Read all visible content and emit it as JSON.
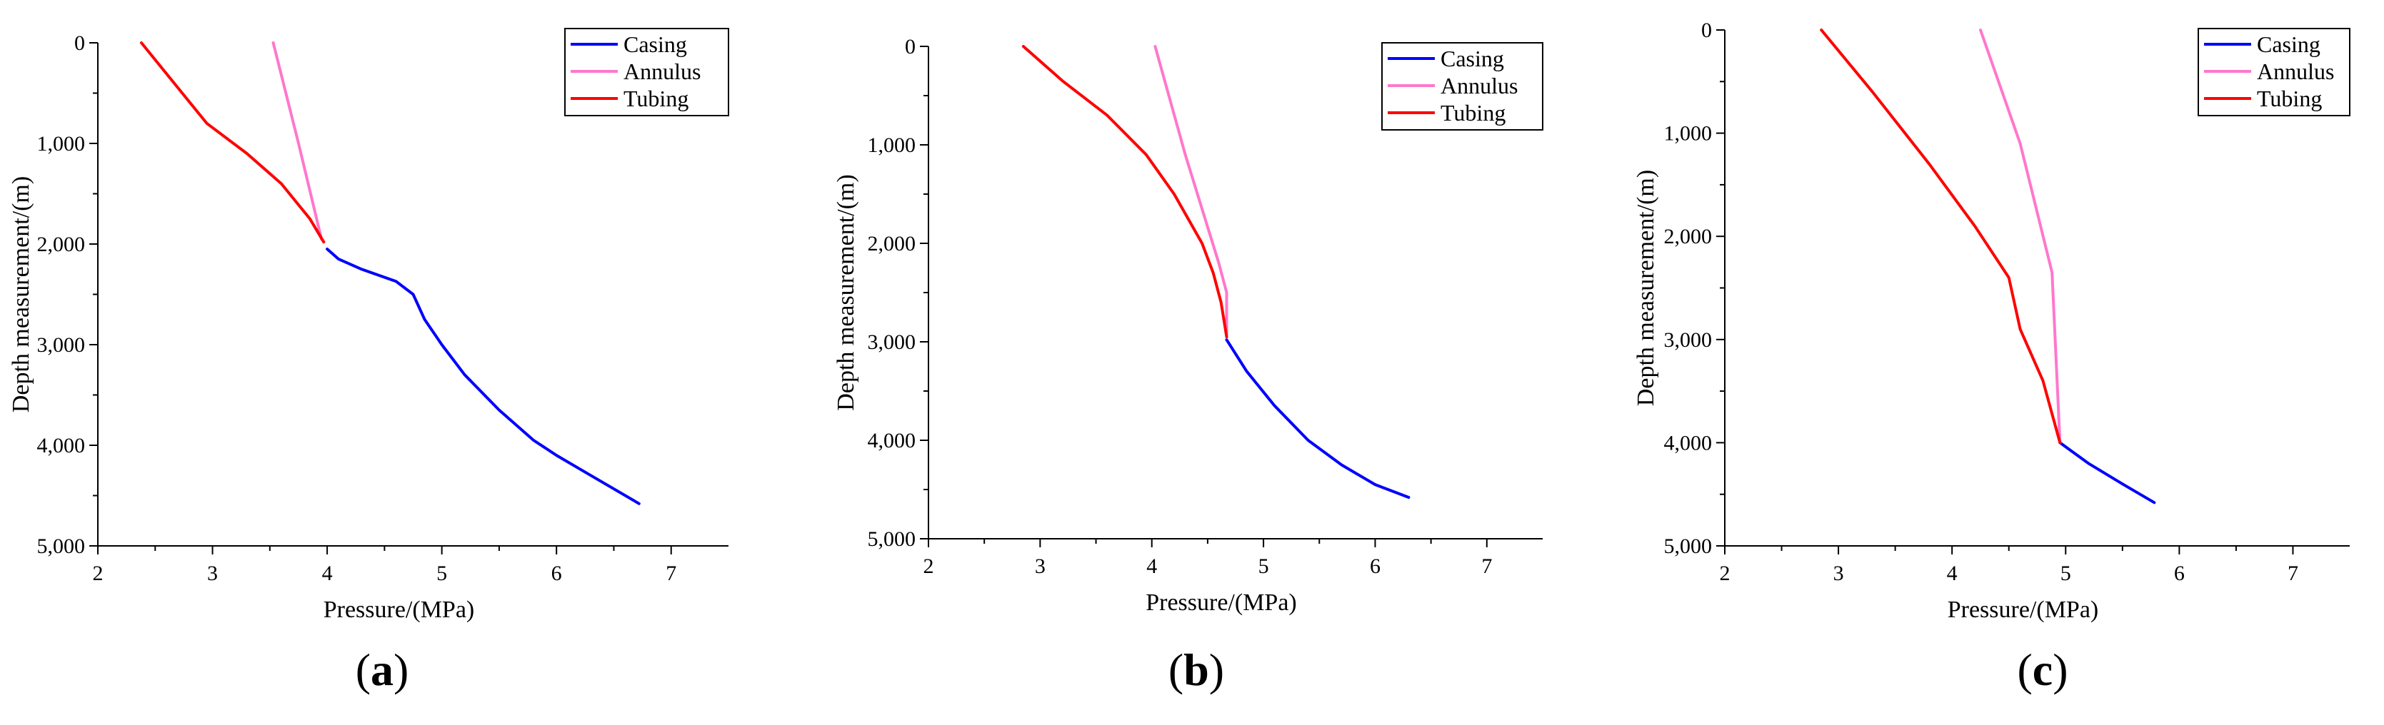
{
  "figure": {
    "panels": [
      {
        "label_open": "(",
        "label_letter": "a",
        "label_close": ")"
      },
      {
        "label_open": "(",
        "label_letter": "b",
        "label_close": ")"
      },
      {
        "label_open": "(",
        "label_letter": "c",
        "label_close": ")"
      }
    ]
  },
  "chart_data": [
    {
      "type": "line",
      "panel": "a",
      "xlabel": "Pressure/(MPa)",
      "ylabel": "Depth measurement/(m)",
      "xlim": [
        2,
        7.5
      ],
      "ylim": [
        0,
        5000
      ],
      "y_inverted": true,
      "x_ticks": [
        2,
        3,
        4,
        5,
        6,
        7
      ],
      "x_tick_labels": [
        "2",
        "3",
        "4",
        "5",
        "6",
        "7"
      ],
      "y_ticks": [
        0,
        1000,
        2000,
        3000,
        4000,
        5000
      ],
      "y_tick_labels": [
        "0",
        "1,000",
        "2,000",
        "3,000",
        "4,000",
        "5,000"
      ],
      "legend_position": "top-right",
      "series": [
        {
          "name": "Casing",
          "color": "#0000ff",
          "x": [
            4.0,
            4.1,
            4.3,
            4.6,
            4.75,
            4.85,
            5.0,
            5.2,
            5.5,
            5.8,
            6.0,
            6.3,
            6.72
          ],
          "y": [
            2050,
            2150,
            2250,
            2370,
            2500,
            2750,
            3000,
            3300,
            3650,
            3950,
            4100,
            4300,
            4580
          ]
        },
        {
          "name": "Annulus",
          "color": "#ff77cc",
          "x": [
            3.53,
            3.75,
            3.95
          ],
          "y": [
            0,
            1000,
            1950
          ]
        },
        {
          "name": "Tubing",
          "color": "#ff0000",
          "x": [
            2.38,
            2.7,
            2.95,
            3.3,
            3.6,
            3.85,
            3.97
          ],
          "y": [
            0,
            450,
            800,
            1100,
            1400,
            1750,
            1980
          ]
        }
      ]
    },
    {
      "type": "line",
      "panel": "b",
      "xlabel": "Pressure/(MPa)",
      "ylabel": "Depth measurement/(m)",
      "xlim": [
        2,
        7.5
      ],
      "ylim": [
        0,
        5000
      ],
      "y_inverted": true,
      "x_ticks": [
        2,
        3,
        4,
        5,
        6,
        7
      ],
      "x_tick_labels": [
        "2",
        "3",
        "4",
        "5",
        "6",
        "7"
      ],
      "y_ticks": [
        0,
        1000,
        2000,
        3000,
        4000,
        5000
      ],
      "y_tick_labels": [
        "0",
        "1,000",
        "2,000",
        "3,000",
        "4,000",
        "5,000"
      ],
      "legend_position": "top-right",
      "series": [
        {
          "name": "Casing",
          "color": "#0000ff",
          "x": [
            4.67,
            4.85,
            5.1,
            5.4,
            5.7,
            6.0,
            6.3
          ],
          "y": [
            2980,
            3300,
            3650,
            4000,
            4250,
            4450,
            4580
          ]
        },
        {
          "name": "Annulus",
          "color": "#ff77cc",
          "x": [
            4.03,
            4.3,
            4.6,
            4.67,
            4.67
          ],
          "y": [
            0,
            1100,
            2200,
            2500,
            2950
          ]
        },
        {
          "name": "Tubing",
          "color": "#ff0000",
          "x": [
            2.85,
            3.2,
            3.6,
            3.95,
            4.2,
            4.45,
            4.55,
            4.62,
            4.67
          ],
          "y": [
            0,
            350,
            700,
            1100,
            1500,
            2000,
            2300,
            2600,
            2950
          ]
        }
      ]
    },
    {
      "type": "line",
      "panel": "c",
      "xlabel": "Pressure/(MPa)",
      "ylabel": "Depth measurement/(m)",
      "xlim": [
        2,
        7.5
      ],
      "ylim": [
        0,
        5000
      ],
      "y_inverted": true,
      "x_ticks": [
        2,
        3,
        4,
        5,
        6,
        7
      ],
      "x_tick_labels": [
        "2",
        "3",
        "4",
        "5",
        "6",
        "7"
      ],
      "y_ticks": [
        0,
        1000,
        2000,
        3000,
        4000,
        5000
      ],
      "y_tick_labels": [
        "0",
        "1,000",
        "2,000",
        "3,000",
        "4,000",
        "5,000"
      ],
      "legend_position": "top-right",
      "series": [
        {
          "name": "Casing",
          "color": "#0000ff",
          "x": [
            4.95,
            5.2,
            5.5,
            5.78
          ],
          "y": [
            4000,
            4200,
            4400,
            4580
          ]
        },
        {
          "name": "Annulus",
          "color": "#ff77cc",
          "x": [
            4.25,
            4.6,
            4.88,
            4.95
          ],
          "y": [
            0,
            1100,
            2350,
            4000
          ]
        },
        {
          "name": "Tubing",
          "color": "#ff0000",
          "x": [
            2.85,
            3.3,
            3.8,
            4.2,
            4.5,
            4.6,
            4.8,
            4.95
          ],
          "y": [
            0,
            600,
            1300,
            1900,
            2400,
            2900,
            3400,
            4000
          ]
        }
      ]
    }
  ]
}
